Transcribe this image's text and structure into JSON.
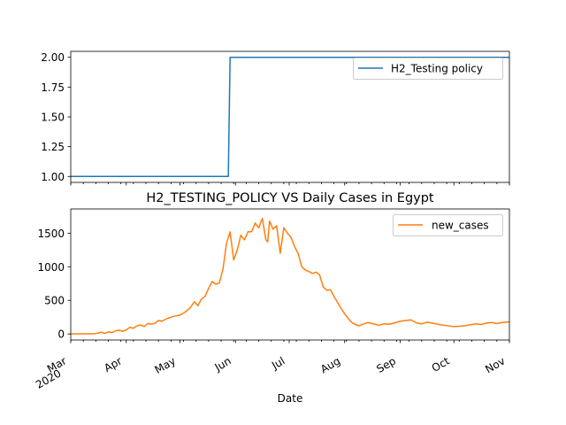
{
  "chart_data": [
    {
      "type": "line",
      "title": "",
      "xlabel": "",
      "ylabel": "",
      "ylim": [
        0.95,
        2.05
      ],
      "yticks": [
        "1.00",
        "1.25",
        "1.50",
        "1.75",
        "2.00"
      ],
      "legend_position": "upper right",
      "series": [
        {
          "name": "H2_Testing policy",
          "color": "#1f77b4",
          "x": [
            "2020-03-01",
            "2020-05-28",
            "2020-05-29",
            "2020-11-01"
          ],
          "values": [
            1,
            1,
            2,
            2
          ]
        }
      ]
    },
    {
      "type": "line",
      "title": "H2_TESTING_POLICY VS Daily Cases in Egypt",
      "xlabel": "Date",
      "ylabel": "",
      "ylim": [
        -90,
        1860
      ],
      "yticks": [
        "0",
        "500",
        "1000",
        "1500"
      ],
      "xticks": [
        {
          "label": "Mar",
          "sub": "2020",
          "date": "2020-03-01"
        },
        {
          "label": "Apr",
          "sub": "",
          "date": "2020-04-01"
        },
        {
          "label": "May",
          "sub": "",
          "date": "2020-05-01"
        },
        {
          "label": "Jun",
          "sub": "",
          "date": "2020-06-01"
        },
        {
          "label": "Jul",
          "sub": "",
          "date": "2020-07-01"
        },
        {
          "label": "Aug",
          "sub": "",
          "date": "2020-08-01"
        },
        {
          "label": "Sep",
          "sub": "",
          "date": "2020-09-01"
        },
        {
          "label": "Oct",
          "sub": "",
          "date": "2020-10-01"
        },
        {
          "label": "Nov",
          "sub": "",
          "date": "2020-11-01"
        }
      ],
      "legend_position": "upper right",
      "series": [
        {
          "name": "new_cases",
          "color": "#ff7f0e",
          "x": [
            "2020-03-01",
            "2020-03-08",
            "2020-03-14",
            "2020-03-16",
            "2020-03-18",
            "2020-03-20",
            "2020-03-22",
            "2020-03-24",
            "2020-03-26",
            "2020-03-28",
            "2020-03-30",
            "2020-04-01",
            "2020-04-03",
            "2020-04-05",
            "2020-04-07",
            "2020-04-09",
            "2020-04-11",
            "2020-04-13",
            "2020-04-15",
            "2020-04-17",
            "2020-04-19",
            "2020-04-21",
            "2020-04-23",
            "2020-04-25",
            "2020-04-27",
            "2020-04-29",
            "2020-05-01",
            "2020-05-03",
            "2020-05-05",
            "2020-05-07",
            "2020-05-09",
            "2020-05-11",
            "2020-05-13",
            "2020-05-15",
            "2020-05-17",
            "2020-05-19",
            "2020-05-21",
            "2020-05-23",
            "2020-05-25",
            "2020-05-27",
            "2020-05-29",
            "2020-05-31",
            "2020-06-02",
            "2020-06-04",
            "2020-06-06",
            "2020-06-08",
            "2020-06-10",
            "2020-06-12",
            "2020-06-14",
            "2020-06-16",
            "2020-06-18",
            "2020-06-19",
            "2020-06-20",
            "2020-06-22",
            "2020-06-24",
            "2020-06-26",
            "2020-06-28",
            "2020-06-30",
            "2020-07-02",
            "2020-07-04",
            "2020-07-06",
            "2020-07-08",
            "2020-07-10",
            "2020-07-12",
            "2020-07-14",
            "2020-07-16",
            "2020-07-18",
            "2020-07-20",
            "2020-07-22",
            "2020-07-24",
            "2020-07-26",
            "2020-07-28",
            "2020-07-30",
            "2020-08-01",
            "2020-08-03",
            "2020-08-05",
            "2020-08-07",
            "2020-08-09",
            "2020-08-11",
            "2020-08-14",
            "2020-08-17",
            "2020-08-20",
            "2020-08-23",
            "2020-08-26",
            "2020-08-29",
            "2020-09-01",
            "2020-09-04",
            "2020-09-07",
            "2020-09-10",
            "2020-09-13",
            "2020-09-16",
            "2020-09-19",
            "2020-09-22",
            "2020-09-25",
            "2020-09-28",
            "2020-10-01",
            "2020-10-04",
            "2020-10-07",
            "2020-10-10",
            "2020-10-13",
            "2020-10-16",
            "2020-10-19",
            "2020-10-22",
            "2020-10-25",
            "2020-10-28",
            "2020-11-01"
          ],
          "values": [
            0,
            2,
            3,
            12,
            25,
            8,
            30,
            20,
            45,
            55,
            40,
            60,
            100,
            85,
            120,
            135,
            110,
            155,
            145,
            160,
            200,
            190,
            220,
            240,
            260,
            270,
            280,
            310,
            350,
            400,
            480,
            420,
            520,
            560,
            680,
            780,
            740,
            760,
            960,
            1350,
            1520,
            1100,
            1250,
            1470,
            1400,
            1520,
            1520,
            1650,
            1580,
            1720,
            1400,
            1370,
            1680,
            1560,
            1610,
            1200,
            1580,
            1500,
            1440,
            1300,
            1200,
            1000,
            950,
            930,
            900,
            920,
            880,
            700,
            650,
            660,
            560,
            470,
            380,
            300,
            230,
            170,
            140,
            120,
            145,
            170,
            150,
            130,
            150,
            145,
            165,
            190,
            200,
            210,
            165,
            150,
            175,
            160,
            145,
            130,
            120,
            110,
            115,
            120,
            135,
            150,
            140,
            160,
            170,
            155,
            170,
            180
          ]
        }
      ]
    }
  ]
}
